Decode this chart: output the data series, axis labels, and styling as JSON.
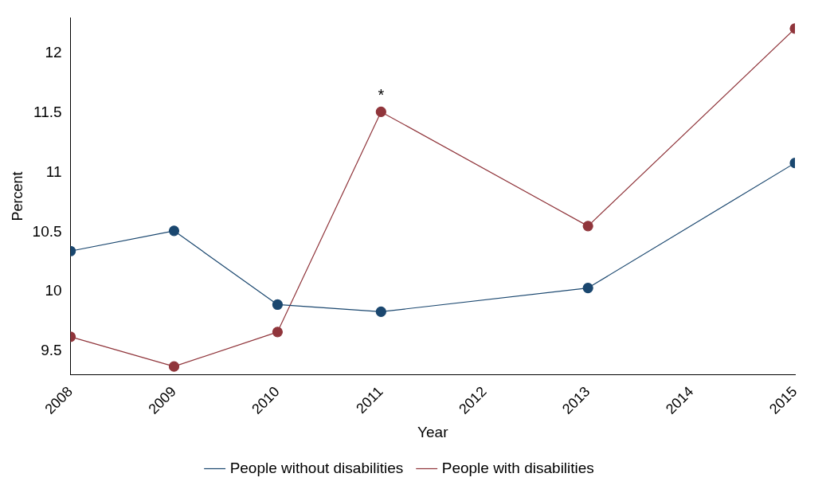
{
  "chart_data": {
    "type": "line",
    "xlabel": "Year",
    "ylabel": "Percent",
    "x": [
      2008,
      2009,
      2010,
      2011,
      2013,
      2015
    ],
    "series": [
      {
        "name": "People without disabilities",
        "color": "#1a476f",
        "values": [
          10.34,
          10.51,
          9.89,
          9.83,
          10.03,
          11.08
        ]
      },
      {
        "name": "People with disabilities",
        "color": "#90353b",
        "values": [
          9.62,
          9.37,
          9.66,
          11.51,
          10.55,
          12.21
        ]
      }
    ],
    "xlim": [
      2008,
      2015
    ],
    "xticks": [
      2008,
      2009,
      2010,
      2011,
      2012,
      2013,
      2014,
      2015
    ],
    "ylim": [
      9.3,
      12.3
    ],
    "yticks": [
      9.5,
      10,
      10.5,
      11,
      11.5,
      12
    ],
    "annotations": [
      {
        "text": "*",
        "x": 2011,
        "y": 11.51
      }
    ],
    "grid": false,
    "legend": "bottom",
    "marker": "circle",
    "line_style": "solid"
  }
}
